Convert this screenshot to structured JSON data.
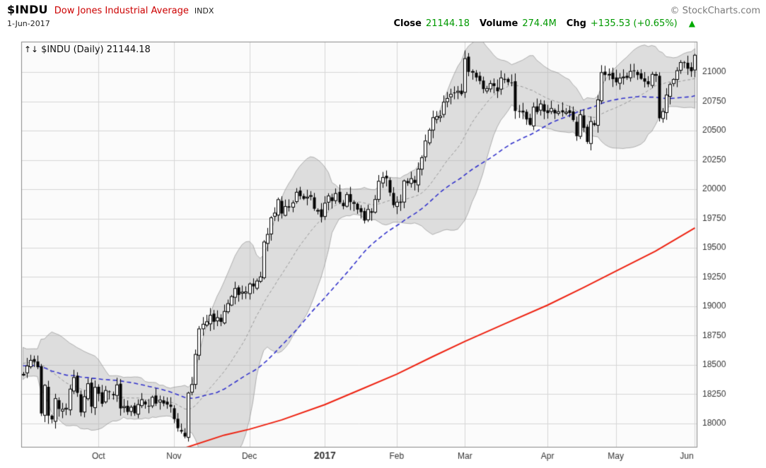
{
  "header": {
    "symbol": "$INDU",
    "name": "Dow Jones Industrial Average",
    "exchange": "INDX",
    "copyright": "© StockCharts.com",
    "date": "1-Jun-2017",
    "close_label": "Close",
    "close_value": "21144.18",
    "volume_label": "Volume",
    "volume_value": "274.4M",
    "chg_label": "Chg",
    "chg_value": "+135.53 (+0.65%)",
    "up_arrow": "▲"
  },
  "legend": {
    "arrows": "↑↓",
    "text": "$INDU (Daily) 21144.18"
  },
  "colors": {
    "name_red": "#cc0000",
    "value_green": "#009900",
    "triangle_green": "#00aa00",
    "plot_bg": "#fbfbfb",
    "grid": "#d6d6d6",
    "border": "#888888",
    "candle": "#000000",
    "band_fill": "rgba(178,178,178,0.40)",
    "band_edge": "rgba(125,125,125,0.55)",
    "band_mid": "#999999",
    "ma50": "#3333cc",
    "ma200": "#ee2211",
    "axis_text": "#333333"
  },
  "chart_data": {
    "type": "candlestick",
    "title": "$INDU Dow Jones Industrial Average (Daily)",
    "xlabel": "",
    "ylabel": "",
    "ylim": [
      17800,
      21260
    ],
    "y_ticks": [
      21000,
      20750,
      20500,
      20250,
      20000,
      19750,
      19500,
      19250,
      19000,
      18750,
      18500,
      18250,
      18000
    ],
    "x_ticks": [
      {
        "label": "Oct",
        "index": 21,
        "bold": false
      },
      {
        "label": "Nov",
        "index": 42,
        "bold": false
      },
      {
        "label": "Dec",
        "index": 63,
        "bold": false
      },
      {
        "label": "2017",
        "index": 84,
        "bold": true
      },
      {
        "label": "Feb",
        "index": 104,
        "bold": false
      },
      {
        "label": "Mar",
        "index": 123,
        "bold": false
      },
      {
        "label": "Apr",
        "index": 146,
        "bold": false
      },
      {
        "label": "May",
        "index": 165,
        "bold": false
      },
      {
        "label": "Jun",
        "index": 187,
        "bold": false
      }
    ],
    "overlays": [
      "Bollinger Bands (20,2) gray area with dashed middle",
      "50-day SMA blue dashed",
      "200-day SMA red solid"
    ],
    "leadin_closes": [
      18404,
      18355,
      18313,
      18352,
      18526,
      18495,
      18529,
      18533,
      18495,
      18576,
      18552,
      18589,
      18597,
      18613,
      18595,
      18552,
      18529,
      18502,
      18481,
      18448,
      18456,
      18400
    ],
    "closes": [
      18419,
      18491,
      18538,
      18526,
      18480,
      18085,
      18325,
      18066,
      18034,
      18212,
      18123,
      18120,
      18130,
      18293,
      18392,
      18261,
      18094,
      18228,
      18339,
      18143,
      18308,
      18253,
      18168,
      18281,
      18268,
      18240,
      18329,
      18128,
      18144,
      18098,
      18138,
      18086,
      18161,
      18202,
      18162,
      18145,
      18223,
      18169,
      18199,
      18170,
      18161,
      18142,
      18037,
      17959,
      17930,
      17888,
      18259,
      18332,
      18589,
      18807,
      18847,
      18868,
      18923,
      18868,
      18903,
      18867,
      18956,
      19023,
      19083,
      19152,
      19097,
      19121,
      19123,
      19191,
      19170,
      19216,
      19251,
      19549,
      19614,
      19756,
      19796,
      19911,
      19792,
      19852,
      19843,
      19883,
      19974,
      19941,
      19918,
      19933,
      19945,
      19833,
      19819,
      19762,
      19881,
      19942,
      19899,
      19963,
      19887,
      19855,
      19954,
      19891,
      19885,
      19826,
      19804,
      19732,
      19827,
      19799,
      19912,
      20068,
      20100,
      20093,
      19971,
      19864,
      19890,
      19884,
      20071,
      20052,
      20090,
      20054,
      20172,
      20269,
      20412,
      20504,
      20611,
      20619,
      20624,
      20743,
      20775,
      20810,
      20821,
      20837,
      20812,
      21115,
      21002,
      21005,
      20954,
      20924,
      20855,
      20858,
      20902,
      20881,
      20837,
      20950,
      20934,
      20914,
      20905,
      20668,
      20661,
      20656,
      20596,
      20550,
      20701,
      20659,
      20728,
      20663,
      20650,
      20689,
      20648,
      20662,
      20656,
      20658,
      20651,
      20591,
      20453,
      20636,
      20523,
      20404,
      20578,
      20548,
      20763,
      20996,
      20975,
      20981,
      20940,
      20913,
      20949,
      20958,
      20951,
      21006,
      21012,
      20975,
      20943,
      20919,
      20896,
      20981,
      20979,
      20606,
      20663,
      20804,
      20894,
      20937,
      21012,
      21082,
      21080,
      21029,
      21008,
      21144
    ],
    "ma200_anchors": [
      [
        44,
        17780
      ],
      [
        56,
        17900
      ],
      [
        63,
        17950
      ],
      [
        72,
        18030
      ],
      [
        84,
        18160
      ],
      [
        94,
        18290
      ],
      [
        104,
        18420
      ],
      [
        114,
        18570
      ],
      [
        123,
        18700
      ],
      [
        134,
        18850
      ],
      [
        146,
        19010
      ],
      [
        156,
        19160
      ],
      [
        165,
        19300
      ],
      [
        176,
        19470
      ],
      [
        187,
        19670
      ]
    ]
  }
}
